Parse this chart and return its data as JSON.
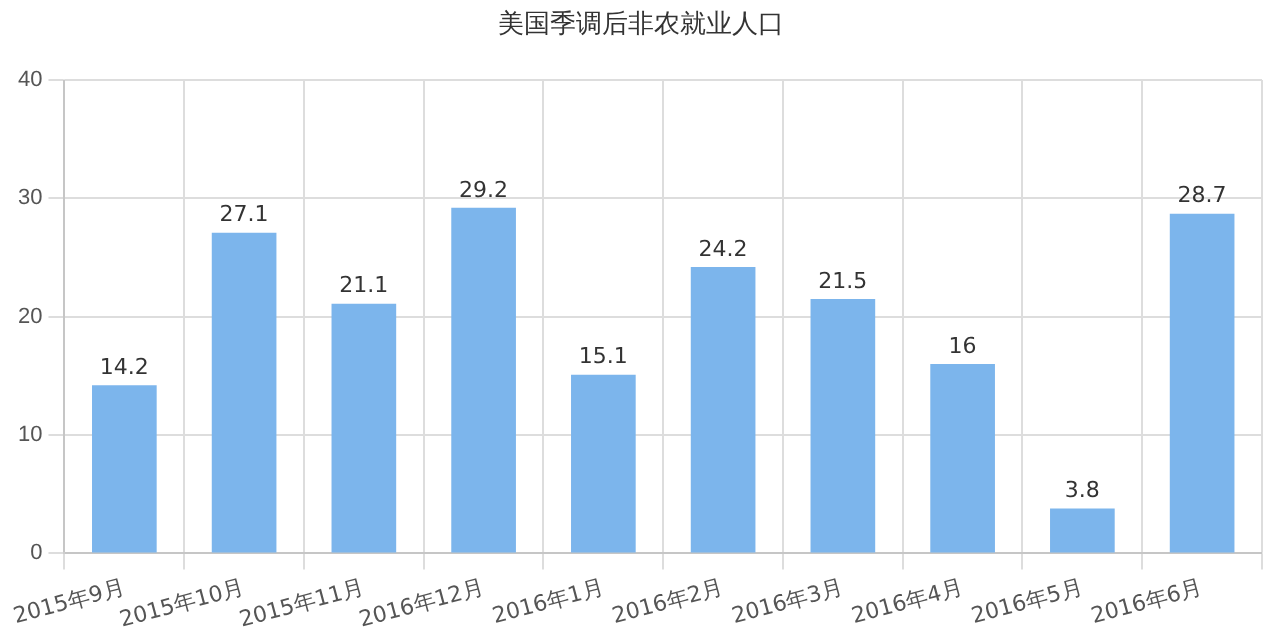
{
  "chart_data": {
    "type": "bar",
    "title": "美国季调后非农就业人口",
    "categories": [
      "2015年9月",
      "2015年10月",
      "2015年11月",
      "2016年12月",
      "2016年1月",
      "2016年2月",
      "2016年3月",
      "2016年4月",
      "2016年5月",
      "2016年6月"
    ],
    "values": [
      14.2,
      27.1,
      21.1,
      29.2,
      15.1,
      24.2,
      21.5,
      16,
      3.8,
      28.7
    ],
    "color": "#7cb5ec",
    "ylim": [
      0,
      40
    ],
    "yticks": [
      0,
      10,
      20,
      30,
      40
    ],
    "grid": true,
    "data_labels": true
  }
}
